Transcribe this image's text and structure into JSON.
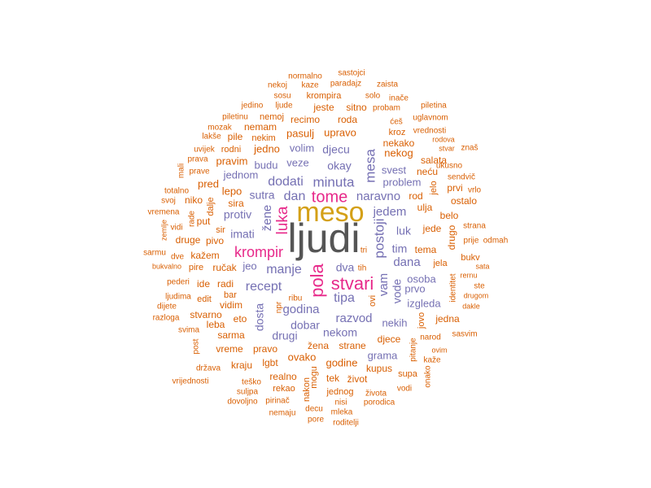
{
  "colors": {
    "gray": "#555555",
    "gold": "#d4a017",
    "magenta": "#e7298a",
    "purple": "#7570b3",
    "orange": "#d95f02"
  },
  "words": [
    {
      "text": "ljudi",
      "color": "gray"
    },
    {
      "text": "meso",
      "color": "gold"
    },
    {
      "text": "stvari",
      "color": "magenta"
    },
    {
      "text": "pola",
      "color": "magenta"
    },
    {
      "text": "tome",
      "color": "magenta"
    },
    {
      "text": "luka",
      "color": "magenta"
    },
    {
      "text": "krompir",
      "color": "magenta"
    },
    {
      "text": "minuta",
      "color": "purple"
    },
    {
      "text": "dodati",
      "color": "purple"
    },
    {
      "text": "dan",
      "color": "purple"
    },
    {
      "text": "naravno",
      "color": "purple"
    },
    {
      "text": "mesa",
      "color": "purple"
    },
    {
      "text": "postoji",
      "color": "purple"
    },
    {
      "text": "jedem",
      "color": "purple"
    },
    {
      "text": "manje",
      "color": "purple"
    },
    {
      "text": "recept",
      "color": "purple"
    },
    {
      "text": "godina",
      "color": "purple"
    },
    {
      "text": "tipa",
      "color": "purple"
    },
    {
      "text": "dana",
      "color": "purple"
    },
    {
      "text": "vam",
      "color": "purple"
    },
    {
      "text": "razvod",
      "color": "purple"
    },
    {
      "text": "dobar",
      "color": "purple"
    },
    {
      "text": "drugi",
      "color": "purple"
    },
    {
      "text": "nekom",
      "color": "purple"
    },
    {
      "text": "djecu",
      "color": "purple"
    },
    {
      "text": "okay",
      "color": "purple"
    },
    {
      "text": "sutra",
      "color": "purple"
    },
    {
      "text": "protiv",
      "color": "purple"
    },
    {
      "text": "imati",
      "color": "purple"
    },
    {
      "text": "žene",
      "color": "purple"
    },
    {
      "text": "veze",
      "color": "purple"
    },
    {
      "text": "budu",
      "color": "purple"
    },
    {
      "text": "svest",
      "color": "purple"
    },
    {
      "text": "problem",
      "color": "purple"
    },
    {
      "text": "luk",
      "color": "purple"
    },
    {
      "text": "tim",
      "color": "purple"
    },
    {
      "text": "dva",
      "color": "purple"
    },
    {
      "text": "vode",
      "color": "purple"
    },
    {
      "text": "prvo",
      "color": "purple"
    },
    {
      "text": "osoba",
      "color": "purple"
    },
    {
      "text": "nekih",
      "color": "purple"
    },
    {
      "text": "dosta",
      "color": "purple"
    },
    {
      "text": "jednom",
      "color": "purple"
    },
    {
      "text": "volim",
      "color": "purple"
    },
    {
      "text": "izgleda",
      "color": "purple"
    },
    {
      "text": "jeo",
      "color": "purple"
    },
    {
      "text": "grama",
      "color": "purple"
    },
    {
      "text": "normalno",
      "color": "orange"
    },
    {
      "text": "sastojci",
      "color": "orange"
    },
    {
      "text": "nekoj",
      "color": "orange"
    },
    {
      "text": "kaze",
      "color": "orange"
    },
    {
      "text": "paradajz",
      "color": "orange"
    },
    {
      "text": "zaista",
      "color": "orange"
    },
    {
      "text": "sosu",
      "color": "orange"
    },
    {
      "text": "krompira",
      "color": "orange"
    },
    {
      "text": "solo",
      "color": "orange"
    },
    {
      "text": "inače",
      "color": "orange"
    },
    {
      "text": "jedino",
      "color": "orange"
    },
    {
      "text": "ljude",
      "color": "orange"
    },
    {
      "text": "jeste",
      "color": "orange"
    },
    {
      "text": "sitno",
      "color": "orange"
    },
    {
      "text": "probam",
      "color": "orange"
    },
    {
      "text": "piletina",
      "color": "orange"
    },
    {
      "text": "piletinu",
      "color": "orange"
    },
    {
      "text": "nemoj",
      "color": "orange"
    },
    {
      "text": "recimo",
      "color": "orange"
    },
    {
      "text": "roda",
      "color": "orange"
    },
    {
      "text": "ćeš",
      "color": "orange"
    },
    {
      "text": "uglavnom",
      "color": "orange"
    },
    {
      "text": "mozak",
      "color": "orange"
    },
    {
      "text": "nemam",
      "color": "orange"
    },
    {
      "text": "kroz",
      "color": "orange"
    },
    {
      "text": "vrednosti",
      "color": "orange"
    },
    {
      "text": "lakše",
      "color": "orange"
    },
    {
      "text": "pile",
      "color": "orange"
    },
    {
      "text": "nekim",
      "color": "orange"
    },
    {
      "text": "pasulj",
      "color": "orange"
    },
    {
      "text": "upravo",
      "color": "orange"
    },
    {
      "text": "nekako",
      "color": "orange"
    },
    {
      "text": "rodova",
      "color": "orange"
    },
    {
      "text": "uvijek",
      "color": "orange"
    },
    {
      "text": "rodni",
      "color": "orange"
    },
    {
      "text": "jedno",
      "color": "orange"
    },
    {
      "text": "nekog",
      "color": "orange"
    },
    {
      "text": "stvar",
      "color": "orange"
    },
    {
      "text": "znaš",
      "color": "orange"
    },
    {
      "text": "prava",
      "color": "orange"
    },
    {
      "text": "pravim",
      "color": "orange"
    },
    {
      "text": "salata",
      "color": "orange"
    },
    {
      "text": "mali",
      "color": "orange"
    },
    {
      "text": "prave",
      "color": "orange"
    },
    {
      "text": "ukusno",
      "color": "orange"
    },
    {
      "text": "neću",
      "color": "orange"
    },
    {
      "text": "sendvič",
      "color": "orange"
    },
    {
      "text": "pred",
      "color": "orange"
    },
    {
      "text": "jelo",
      "color": "orange"
    },
    {
      "text": "prvi",
      "color": "orange"
    },
    {
      "text": "vrlo",
      "color": "orange"
    },
    {
      "text": "totalno",
      "color": "orange"
    },
    {
      "text": "lepo",
      "color": "orange"
    },
    {
      "text": "svoj",
      "color": "orange"
    },
    {
      "text": "niko",
      "color": "orange"
    },
    {
      "text": "sira",
      "color": "orange"
    },
    {
      "text": "dalje",
      "color": "orange"
    },
    {
      "text": "rod",
      "color": "orange"
    },
    {
      "text": "ostalo",
      "color": "orange"
    },
    {
      "text": "vremena",
      "color": "orange"
    },
    {
      "text": "rade",
      "color": "orange"
    },
    {
      "text": "ulja",
      "color": "orange"
    },
    {
      "text": "drugo",
      "color": "orange"
    },
    {
      "text": "belo",
      "color": "orange"
    },
    {
      "text": "strana",
      "color": "orange"
    },
    {
      "text": "zemlje",
      "color": "orange"
    },
    {
      "text": "vidi",
      "color": "orange"
    },
    {
      "text": "put",
      "color": "orange"
    },
    {
      "text": "sir",
      "color": "orange"
    },
    {
      "text": "jede",
      "color": "orange"
    },
    {
      "text": "prije",
      "color": "orange"
    },
    {
      "text": "odmah",
      "color": "orange"
    },
    {
      "text": "sarmu",
      "color": "orange"
    },
    {
      "text": "druge",
      "color": "orange"
    },
    {
      "text": "pivo",
      "color": "orange"
    },
    {
      "text": "tri",
      "color": "orange"
    },
    {
      "text": "tema",
      "color": "orange"
    },
    {
      "text": "dve",
      "color": "orange"
    },
    {
      "text": "kažem",
      "color": "orange"
    },
    {
      "text": "bukv",
      "color": "orange"
    },
    {
      "text": "bukvalno",
      "color": "orange"
    },
    {
      "text": "pire",
      "color": "orange"
    },
    {
      "text": "ručak",
      "color": "orange"
    },
    {
      "text": "tih",
      "color": "orange"
    },
    {
      "text": "jela",
      "color": "orange"
    },
    {
      "text": "sata",
      "color": "orange"
    },
    {
      "text": "identitet",
      "color": "orange"
    },
    {
      "text": "rernu",
      "color": "orange"
    },
    {
      "text": "pederi",
      "color": "orange"
    },
    {
      "text": "ide",
      "color": "orange"
    },
    {
      "text": "radi",
      "color": "orange"
    },
    {
      "text": "ste",
      "color": "orange"
    },
    {
      "text": "ljudima",
      "color": "orange"
    },
    {
      "text": "edit",
      "color": "orange"
    },
    {
      "text": "bar",
      "color": "orange"
    },
    {
      "text": "npr",
      "color": "orange"
    },
    {
      "text": "ribu",
      "color": "orange"
    },
    {
      "text": "drugom",
      "color": "orange"
    },
    {
      "text": "dijete",
      "color": "orange"
    },
    {
      "text": "vidim",
      "color": "orange"
    },
    {
      "text": "ovi",
      "color": "orange"
    },
    {
      "text": "dakle",
      "color": "orange"
    },
    {
      "text": "razloga",
      "color": "orange"
    },
    {
      "text": "stvarno",
      "color": "orange"
    },
    {
      "text": "eto",
      "color": "orange"
    },
    {
      "text": "jovo",
      "color": "orange"
    },
    {
      "text": "jedna",
      "color": "orange"
    },
    {
      "text": "svima",
      "color": "orange"
    },
    {
      "text": "leba",
      "color": "orange"
    },
    {
      "text": "djece",
      "color": "orange"
    },
    {
      "text": "narod",
      "color": "orange"
    },
    {
      "text": "sasvim",
      "color": "orange"
    },
    {
      "text": "post",
      "color": "orange"
    },
    {
      "text": "sarma",
      "color": "orange"
    },
    {
      "text": "žena",
      "color": "orange"
    },
    {
      "text": "strane",
      "color": "orange"
    },
    {
      "text": "pitanje",
      "color": "orange"
    },
    {
      "text": "ovim",
      "color": "orange"
    },
    {
      "text": "vreme",
      "color": "orange"
    },
    {
      "text": "pravo",
      "color": "orange"
    },
    {
      "text": "kaže",
      "color": "orange"
    },
    {
      "text": "ovako",
      "color": "orange"
    },
    {
      "text": "godine",
      "color": "orange"
    },
    {
      "text": "država",
      "color": "orange"
    },
    {
      "text": "kraju",
      "color": "orange"
    },
    {
      "text": "lgbt",
      "color": "orange"
    },
    {
      "text": "kupus",
      "color": "orange"
    },
    {
      "text": "supa",
      "color": "orange"
    },
    {
      "text": "onako",
      "color": "orange"
    },
    {
      "text": "vrijednosti",
      "color": "orange"
    },
    {
      "text": "teško",
      "color": "orange"
    },
    {
      "text": "realno",
      "color": "orange"
    },
    {
      "text": "mogu",
      "color": "orange"
    },
    {
      "text": "tek",
      "color": "orange"
    },
    {
      "text": "život",
      "color": "orange"
    },
    {
      "text": "suljpa",
      "color": "orange"
    },
    {
      "text": "rekao",
      "color": "orange"
    },
    {
      "text": "nakon",
      "color": "orange"
    },
    {
      "text": "jednog",
      "color": "orange"
    },
    {
      "text": "života",
      "color": "orange"
    },
    {
      "text": "vodi",
      "color": "orange"
    },
    {
      "text": "dovoljno",
      "color": "orange"
    },
    {
      "text": "pirinač",
      "color": "orange"
    },
    {
      "text": "nisi",
      "color": "orange"
    },
    {
      "text": "porodica",
      "color": "orange"
    },
    {
      "text": "decu",
      "color": "orange"
    },
    {
      "text": "nemaju",
      "color": "orange"
    },
    {
      "text": "mleka",
      "color": "orange"
    },
    {
      "text": "pore",
      "color": "orange"
    },
    {
      "text": "roditelji",
      "color": "orange"
    }
  ]
}
